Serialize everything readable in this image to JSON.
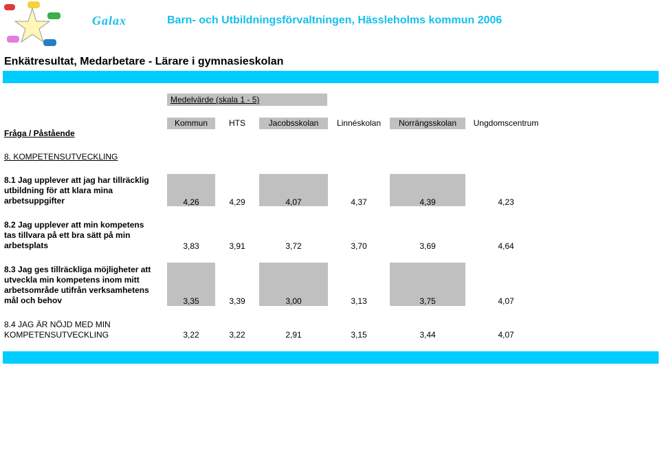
{
  "header": {
    "brand": "Galax",
    "organization": "Barn- och Utbildningsförvaltningen, Hässleholms kommun 2006"
  },
  "title": "Enkätresultat, Medarbetare - Lärare i gymnasieskolan",
  "table": {
    "group_header": "Medelvärde (skala 1 - 5)",
    "question_header": "Fråga / Påstående",
    "columns": [
      "Kommun",
      "HTS",
      "Jacobsskolan",
      "Linnéskolan",
      "Norrängsskolan",
      "Ungdomscentrum"
    ],
    "section": "8. KOMPETENSUTVECKLING",
    "rows": [
      {
        "lines": [
          "8.1 Jag upplever att jag har tillräcklig",
          "utbildning för att klara mina",
          "arbetsuppgifter"
        ],
        "values": [
          "4,26",
          "4,29",
          "4,07",
          "4,37",
          "4,39",
          "4,23"
        ]
      },
      {
        "lines": [
          "8.2 Jag upplever att min kompetens",
          "tas tillvara på ett bra sätt på min",
          "arbetsplats"
        ],
        "values": [
          "3,83",
          "3,91",
          "3,72",
          "3,70",
          "3,69",
          "4,64"
        ]
      },
      {
        "lines": [
          "8.3 Jag ges tillräckliga möjligheter att",
          "utveckla min kompetens inom mitt",
          "arbetsområde utifrån verksamhetens",
          "mål och behov"
        ],
        "values": [
          "3,35",
          "3,39",
          "3,00",
          "3,13",
          "3,75",
          "4,07"
        ]
      },
      {
        "lines": [
          "8.4 JAG ÄR NÖJD MED MIN",
          "KOMPETENSUTVECKLING"
        ],
        "values": [
          "3,22",
          "3,22",
          "2,91",
          "3,15",
          "3,44",
          "4,07"
        ]
      }
    ]
  },
  "colors": {
    "accent": "#00ccff",
    "grey_cell": "#c0c0c0"
  }
}
